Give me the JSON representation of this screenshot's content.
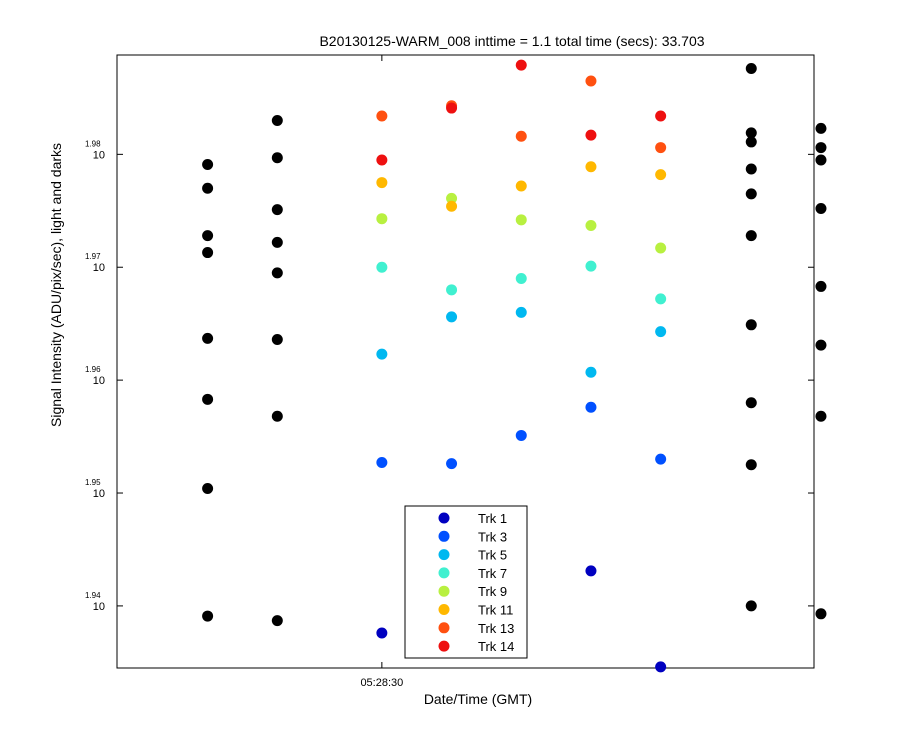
{
  "chart_data": {
    "type": "scatter",
    "title": "B20130125-WARM_008 inttime = 1.1 total time (secs): 33.703",
    "xlabel": "Date/Time (GMT)",
    "ylabel": "Signal Intensity (ADU/pix/sec), light and darks",
    "x_ticks": [
      {
        "pos": 4.3,
        "label": "05:28:30"
      }
    ],
    "xlim": [
      0.5,
      10.5
    ],
    "ylim": [
      1.9345,
      1.9888
    ],
    "y_ticks": [
      {
        "value": 1.94,
        "mantissa": "10",
        "exp": "1.94"
      },
      {
        "value": 1.95,
        "mantissa": "10",
        "exp": "1.95"
      },
      {
        "value": 1.96,
        "mantissa": "10",
        "exp": "1.96"
      },
      {
        "value": 1.97,
        "mantissa": "10",
        "exp": "1.97"
      },
      {
        "value": 1.98,
        "mantissa": "10",
        "exp": "1.98"
      }
    ],
    "dark_color": "#000000",
    "dark_series": [
      {
        "x": 1.8,
        "y": [
          1.9391,
          1.9504,
          1.9583,
          1.9637,
          1.9713,
          1.9728,
          1.977,
          1.9791
        ]
      },
      {
        "x": 2.8,
        "y": [
          1.9387,
          1.9568,
          1.9636,
          1.9695,
          1.9722,
          1.9751,
          1.9797,
          1.983
        ]
      },
      {
        "x": 9.6,
        "y": [
          1.94,
          1.9525,
          1.958,
          1.9649,
          1.9728,
          1.9765,
          1.9787,
          1.9811,
          1.9819,
          1.9876
        ]
      },
      {
        "x": 10.6,
        "y": [
          1.9393,
          1.9568,
          1.9631,
          1.9683,
          1.9752,
          1.9795,
          1.9806,
          1.9823
        ]
      }
    ],
    "light_x": [
      4.3,
      5.3,
      6.3,
      7.3,
      8.3
    ],
    "series": [
      {
        "name": "Trk 1",
        "color": "#0000c0",
        "values": [
          1.9376,
          null,
          null,
          1.9431,
          1.9346
        ]
      },
      {
        "name": "Trk 3",
        "color": "#0050ff",
        "values": [
          1.9527,
          1.9526,
          1.9551,
          1.9576,
          1.953
        ]
      },
      {
        "name": "Trk 5",
        "color": "#00b8f0",
        "values": [
          1.9623,
          1.9656,
          1.966,
          1.9607,
          1.9643
        ]
      },
      {
        "name": "Trk 7",
        "color": "#40f0d0",
        "values": [
          1.97,
          1.968,
          1.969,
          1.9701,
          1.9672
        ]
      },
      {
        "name": "Trk 9",
        "color": "#b8f040",
        "values": [
          1.9743,
          1.9761,
          1.9742,
          1.9737,
          1.9717
        ]
      },
      {
        "name": "Trk 11",
        "color": "#ffb800",
        "values": [
          1.9775,
          1.9754,
          1.9772,
          1.9789,
          1.9782
        ]
      },
      {
        "name": "Trk 13",
        "color": "#ff5010",
        "values": [
          1.9834,
          1.9843,
          1.9816,
          1.9865,
          1.9806
        ]
      },
      {
        "name": "Trk 14",
        "color": "#ee1010",
        "values": [
          1.9795,
          1.9841,
          1.9879,
          1.9817,
          1.9834
        ]
      }
    ]
  }
}
